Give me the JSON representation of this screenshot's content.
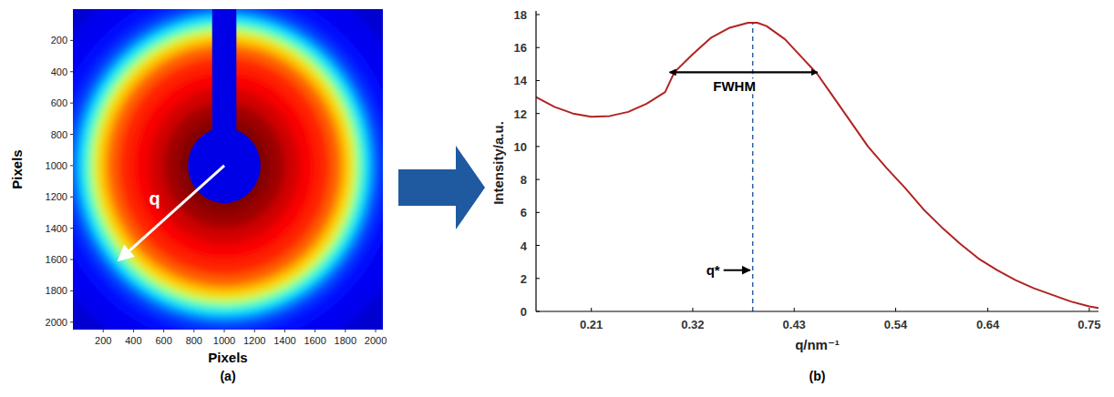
{
  "chart_data": [
    {
      "type": "image",
      "label": "(a)",
      "x_label": "Pixels",
      "y_label": "Pixels",
      "xlim": [
        0,
        2048
      ],
      "ylim": [
        0,
        2048
      ],
      "xticks": [
        200,
        400,
        600,
        800,
        1000,
        1200,
        1400,
        1600,
        1800,
        2000
      ],
      "yticks": [
        200,
        400,
        600,
        800,
        1000,
        1200,
        1400,
        1600,
        1800,
        2000
      ],
      "radius": [
        1500,
        1300,
        1150,
        1060,
        1000,
        960,
        920,
        880,
        840,
        780,
        700,
        600,
        500,
        400,
        300
      ],
      "values": [
        0.08,
        0.11,
        0.14,
        0.18,
        0.25,
        0.35,
        0.45,
        0.58,
        0.68,
        0.78,
        0.84,
        0.88,
        0.92,
        0.97,
        1.0
      ],
      "beam_stop": {
        "x": 1000,
        "y": 1000,
        "radius": 240,
        "arm_width": 160,
        "value": 0.1
      },
      "annotations": [
        {
          "text": "q",
          "x": [
            1000,
            320
          ],
          "y": [
            1000,
            1590
          ]
        }
      ]
    },
    {
      "type": "line",
      "label": "(b)",
      "x_label": "q/nm⁻¹",
      "y_label": "Intensity/a.u.",
      "color": "#b22222",
      "x": [
        0.15,
        0.17,
        0.19,
        0.21,
        0.23,
        0.25,
        0.27,
        0.29,
        0.3,
        0.32,
        0.34,
        0.36,
        0.38,
        0.39,
        0.4,
        0.42,
        0.44,
        0.455,
        0.47,
        0.49,
        0.51,
        0.53,
        0.55,
        0.57,
        0.59,
        0.61,
        0.63,
        0.65,
        0.67,
        0.69,
        0.71,
        0.73,
        0.75,
        0.76
      ],
      "values": [
        13.0,
        12.4,
        12.0,
        11.8,
        11.85,
        12.1,
        12.6,
        13.3,
        14.5,
        15.6,
        16.6,
        17.2,
        17.5,
        17.5,
        17.3,
        16.5,
        15.3,
        14.4,
        13.2,
        11.6,
        10.0,
        8.7,
        7.5,
        6.2,
        5.1,
        4.1,
        3.2,
        2.5,
        1.9,
        1.4,
        1.0,
        0.6,
        0.3,
        0.2
      ],
      "xlim": [
        0.15,
        0.76
      ],
      "ylim": [
        0,
        18
      ],
      "xticks": [
        0.21,
        0.32,
        0.43,
        0.54,
        0.64,
        0.75
      ],
      "yticks": [
        0,
        2,
        4,
        6,
        8,
        10,
        12,
        14,
        16,
        18
      ],
      "annotations": [
        {
          "text": "FWHM",
          "x": [
            0.295,
            0.455
          ],
          "y": 14.5
        },
        {
          "text": "q*",
          "x": 0.385,
          "y": [
            0,
            17.5
          ]
        }
      ]
    }
  ]
}
